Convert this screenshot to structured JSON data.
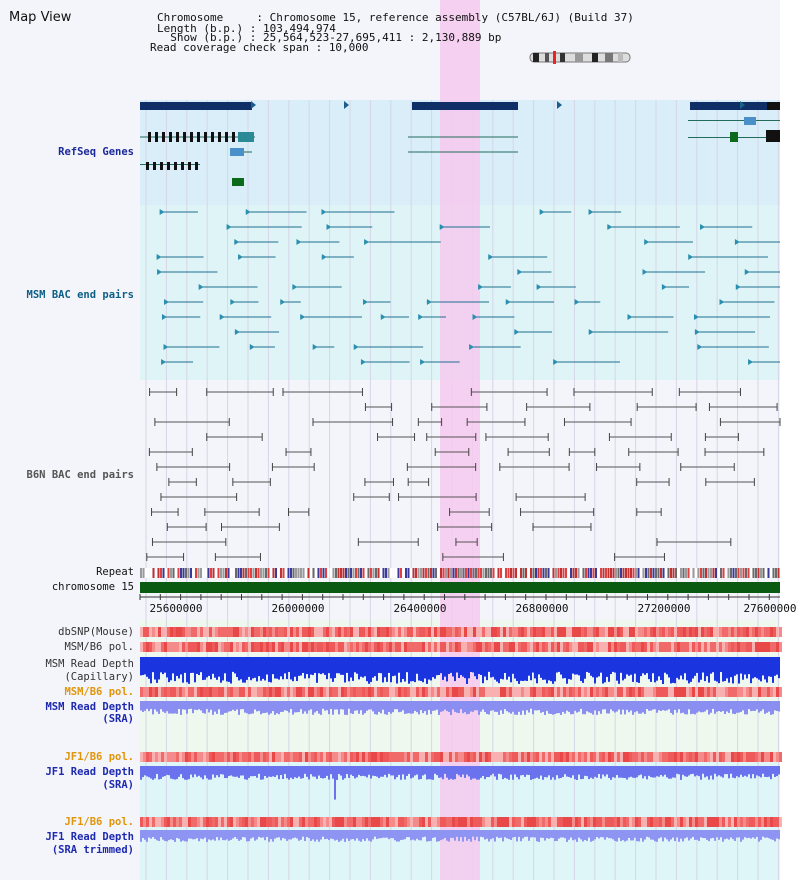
{
  "header": {
    "title": "Map View",
    "chromosome_label": "Chromosome     : ",
    "chromosome_value": "Chromosome 15, reference assembly (C57BL/6J) (Build 37)",
    "length_label": "Length (b.p.) : ",
    "length_value": "103,494,974",
    "show_label": "  Show (b.p.) : ",
    "show_value": "25,564,523-27,695,411 : 2,130,889 bp",
    "coverage_label": "Read coverage check span : ",
    "coverage_value": "10,000"
  },
  "tracks": {
    "refseq": "RefSeq Genes",
    "msm_bac": "MSM BAC end pairs",
    "b6n_bac": "B6N BAC end pairs",
    "repeat": "Repeat",
    "chromosome": "chromosome 15",
    "dbsnp": "dbSNP(Mouse)",
    "msm_b6_pol_1": "MSM/B6 pol.",
    "msm_depth_cap_1": "MSM Read Depth",
    "msm_depth_cap_2": "(Capillary)",
    "msm_b6_pol_2": "MSM/B6 pol.",
    "msm_depth_sra_1": "MSM Read Depth",
    "msm_depth_sra_2": "(SRA)",
    "jf1_b6_pol_1": "JF1/B6 pol.",
    "jf1_depth_sra_1": "JF1 Read Depth",
    "jf1_depth_sra_2": "(SRA)",
    "jf1_b6_pol_2": "JF1/B6 pol.",
    "jf1_depth_trim_1": "JF1 Read Depth",
    "jf1_depth_trim_2": "(SRA trimmed)"
  },
  "axis": {
    "ticks": [
      "25600000",
      "26000000",
      "26400000",
      "26800000",
      "27200000",
      "27600000"
    ]
  },
  "colors": {
    "refseq_label": "#1b2a9a",
    "msm_label": "#0d5f86",
    "b6n_label": "#555555",
    "gold_label": "#e0960a",
    "blue_label": "#1d2ab0",
    "highlight": "#f6c9ee",
    "refseq_bg": "#d9eef9",
    "msm_bg": "#dff4f7",
    "chromosome": "#0a5a12"
  }
}
